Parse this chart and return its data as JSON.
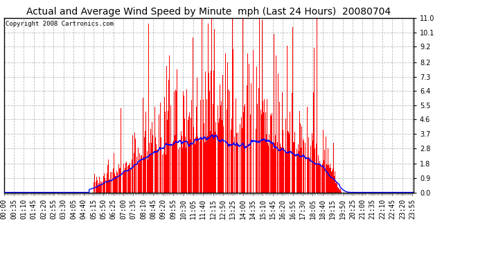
{
  "title": "Actual and Average Wind Speed by Minute  mph (Last 24 Hours)  20080704",
  "copyright": "Copyright 2008 Cartronics.com",
  "yticks": [
    0.0,
    0.9,
    1.8,
    2.8,
    3.7,
    4.6,
    5.5,
    6.4,
    7.3,
    8.2,
    9.2,
    10.1,
    11.0
  ],
  "ylim": [
    0.0,
    11.0
  ],
  "bar_color": "#FF0000",
  "line_color": "#0000FF",
  "bg_color": "#FFFFFF",
  "grid_color": "#AAAAAA",
  "title_fontsize": 10,
  "copyright_fontsize": 6.5,
  "tick_label_fontsize": 7,
  "n_minutes": 1440,
  "xtick_interval": 35,
  "xtick_labels": [
    "00:00",
    "00:35",
    "01:10",
    "01:45",
    "02:20",
    "02:55",
    "03:30",
    "04:05",
    "04:40",
    "05:15",
    "05:50",
    "06:25",
    "07:00",
    "07:35",
    "08:10",
    "08:45",
    "09:20",
    "09:55",
    "10:30",
    "11:05",
    "11:40",
    "12:15",
    "12:50",
    "13:25",
    "14:00",
    "14:35",
    "15:10",
    "15:45",
    "16:20",
    "16:55",
    "17:30",
    "18:05",
    "18:40",
    "19:15",
    "19:50",
    "20:25",
    "21:00",
    "21:35",
    "22:10",
    "22:45",
    "23:20",
    "23:55"
  ]
}
